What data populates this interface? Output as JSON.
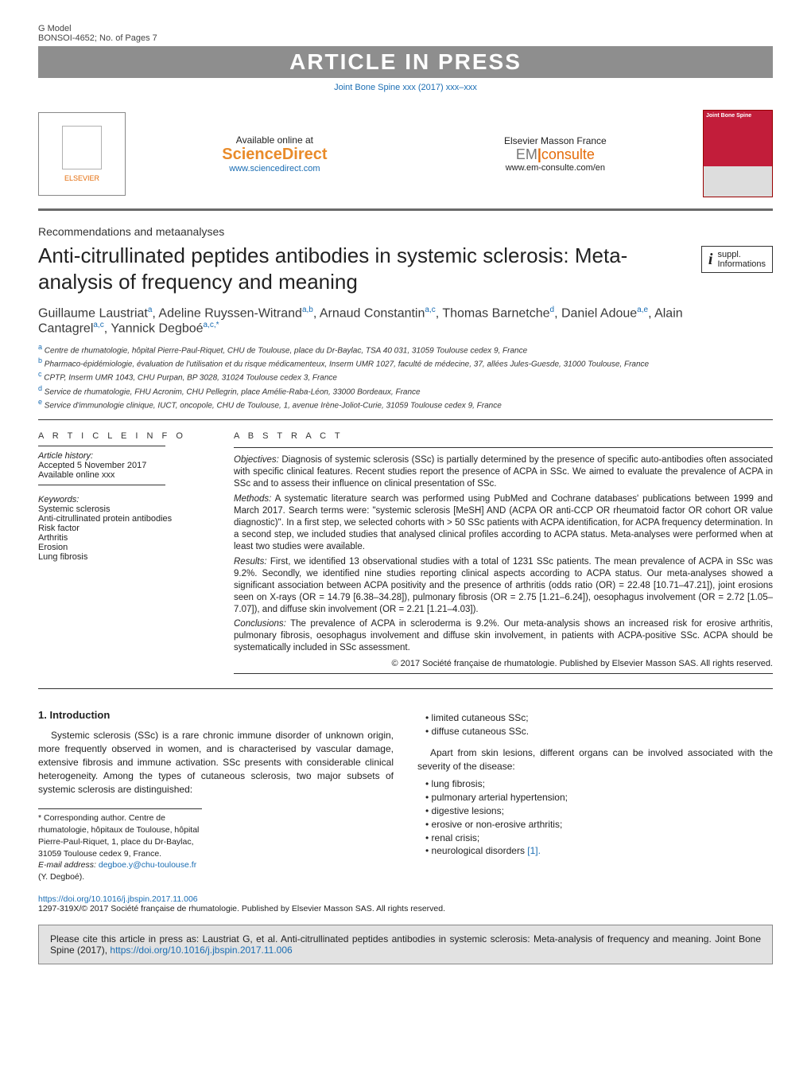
{
  "colors": {
    "accent_blue": "#1a6db3",
    "accent_orange": "#e46c0a",
    "banner_gray": "#8e8e8e",
    "cover_red": "#c21d3a"
  },
  "topbar": {
    "gmodel": "G Model",
    "docid": "BONSOI-4652;  No. of Pages 7",
    "inpress": "ARTICLE IN PRESS",
    "issue": "Joint Bone Spine xxx (2017) xxx–xxx"
  },
  "publisher": {
    "elsevier": "ELSEVIER",
    "available": "Available online at",
    "sciencedirect": "ScienceDirect",
    "sd_url": "www.sciencedirect.com",
    "emf": "Elsevier Masson France",
    "em": "EM",
    "consulte": "consulte",
    "em_url": "www.em-consulte.com/en",
    "cover_title": "Joint Bone Spine"
  },
  "section_label": "Recommendations and metaanalyses",
  "title": "Anti-citrullinated peptides antibodies in systemic sclerosis: Meta-analysis of frequency and meaning",
  "suppl": {
    "icon": "i",
    "line1": "suppl.",
    "line2": "Informations"
  },
  "authors_html": "Guillaume Laustriat<sup>a</sup>, Adeline Ruyssen-Witrand<sup>a,b</sup>, Arnaud Constantin<sup>a,c</sup>, Thomas Barnetche<sup>d</sup>, Daniel Adoue<sup>a,e</sup>, Alain Cantagrel<sup>a,c</sup>, Yannick Degboé<sup>a,c,*</sup>",
  "affils": [
    {
      "sup": "a",
      "text": "Centre de rhumatologie, hôpital Pierre-Paul-Riquet, CHU de Toulouse, place du Dr-Baylac, TSA 40 031, 31059 Toulouse cedex 9, France"
    },
    {
      "sup": "b",
      "text": "Pharmaco-épidémiologie, évaluation de l'utilisation et du risque médicamenteux, Inserm UMR 1027, faculté de médecine, 37, allées Jules-Guesde, 31000 Toulouse, France"
    },
    {
      "sup": "c",
      "text": "CPTP, Inserm UMR 1043, CHU Purpan, BP 3028, 31024 Toulouse cedex 3, France"
    },
    {
      "sup": "d",
      "text": "Service de rhumatologie, FHU Acronim, CHU Pellegrin, place Amélie-Raba-Léon, 33000 Bordeaux, France"
    },
    {
      "sup": "e",
      "text": "Service d'immunologie clinique, IUCT, oncopole, CHU de Toulouse, 1, avenue Irène-Joliot-Curie, 31059 Toulouse cedex 9, France"
    }
  ],
  "info": {
    "h": "A R T I C L E    I N F O",
    "history_h": "Article history:",
    "accepted": "Accepted 5 November 2017",
    "online": "Available online xxx",
    "kw_h": "Keywords:",
    "keywords": [
      "Systemic sclerosis",
      "Anti-citrullinated protein antibodies",
      "Risk factor",
      "Arthritis",
      "Erosion",
      "Lung fibrosis"
    ]
  },
  "abstract": {
    "h": "A B S T R A C T",
    "objectives_h": "Objectives:",
    "objectives": "Diagnosis of systemic sclerosis (SSc) is partially determined by the presence of specific auto-antibodies often associated with specific clinical features. Recent studies report the presence of ACPA in SSc. We aimed to evaluate the prevalence of ACPA in SSc and to assess their influence on clinical presentation of SSc.",
    "methods_h": "Methods:",
    "methods": "A systematic literature search was performed using PubMed and Cochrane databases' publications between 1999 and March 2017. Search terms were: \"systemic sclerosis [MeSH] AND (ACPA OR anti-CCP OR rheumatoid factor OR cohort OR value diagnostic)\". In a first step, we selected cohorts with > 50 SSc patients with ACPA identification, for ACPA frequency determination. In a second step, we included studies that analysed clinical profiles according to ACPA status. Meta-analyses were performed when at least two studies were available.",
    "results_h": "Results:",
    "results": "First, we identified 13 observational studies with a total of 1231 SSc patients. The mean prevalence of ACPA in SSc was 9.2%. Secondly, we identified nine studies reporting clinical aspects according to ACPA status. Our meta-analyses showed a significant association between ACPA positivity and the presence of arthritis (odds ratio (OR) = 22.48 [10.71–47.21]), joint erosions seen on X-rays (OR = 14.79 [6.38–34.28]), pulmonary fibrosis (OR = 2.75 [1.21–6.24]), oesophagus involvement (OR = 2.72 [1.05–7.07]), and diffuse skin involvement (OR = 2.21 [1.21–4.03]).",
    "conclusions_h": "Conclusions:",
    "conclusions": "The prevalence of ACPA in scleroderma is 9.2%. Our meta-analysis shows an increased risk for erosive arthritis, pulmonary fibrosis, oesophagus involvement and diffuse skin involvement, in patients with ACPA-positive SSc. ACPA should be systematically included in SSc assessment.",
    "copyright": "© 2017 Société française de rhumatologie. Published by Elsevier Masson SAS. All rights reserved."
  },
  "intro": {
    "h": "1. Introduction",
    "p1": "Systemic sclerosis (SSc) is a rare chronic immune disorder of unknown origin, more frequently observed in women, and is characterised by vascular damage, extensive fibrosis and immune activation. SSc presents with considerable clinical heterogeneity. Among the types of cutaneous sclerosis, two major subsets of systemic sclerosis are distinguished:",
    "list1": [
      "limited cutaneous SSc;",
      "diffuse cutaneous SSc."
    ],
    "p2": "Apart from skin lesions, different organs can be involved associated with the severity of the disease:",
    "list2": [
      "lung fibrosis;",
      "pulmonary arterial hypertension;",
      "digestive lesions;",
      "erosive or non-erosive arthritis;",
      "renal crisis;",
      "neurological disorders "
    ],
    "ref1": "[1]."
  },
  "footnote": {
    "star": "* Corresponding author. Centre de rhumatologie, hôpitaux de Toulouse, hôpital Pierre-Paul-Riquet, 1, place du Dr-Baylac, 31059 Toulouse cedex 9, France.",
    "email_label": "E-mail address:",
    "email": "degboe.y@chu-toulouse.fr",
    "email_tail": " (Y. Degboé)."
  },
  "doi": {
    "url": "https://doi.org/10.1016/j.jbspin.2017.11.006",
    "line": "1297-319X/© 2017 Société française de rhumatologie. Published by Elsevier Masson SAS. All rights reserved."
  },
  "citebox": {
    "text_a": "Please cite this article in press as: Laustriat G, et al. Anti-citrullinated peptides antibodies in systemic sclerosis: Meta-analysis of frequency and meaning. Joint Bone Spine (2017), ",
    "url": "https://doi.org/10.1016/j.jbspin.2017.11.006"
  }
}
